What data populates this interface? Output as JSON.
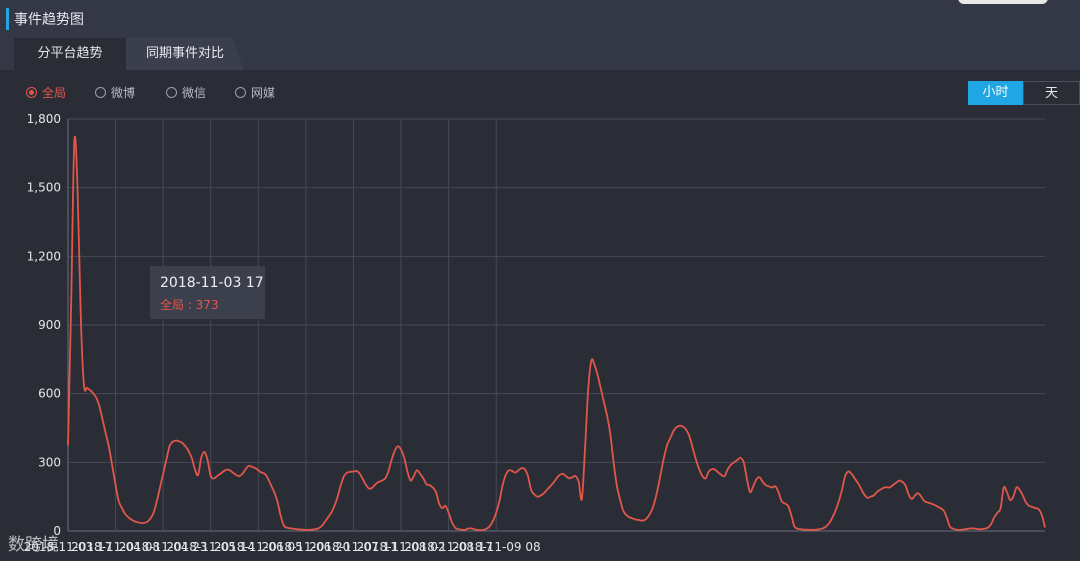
{
  "header": {
    "title": "事件趋势图"
  },
  "tabs": [
    {
      "label": "分平台趋势"
    },
    {
      "label": "同期事件对比"
    }
  ],
  "filters": [
    {
      "label": "全局",
      "selected": true
    },
    {
      "label": "微博",
      "selected": false
    },
    {
      "label": "微信",
      "selected": false
    },
    {
      "label": "网媒",
      "selected": false
    }
  ],
  "unit_toggle": {
    "hour": "小时",
    "day": "天",
    "selected": "hour"
  },
  "tooltip": {
    "time": "2018-11-03 17",
    "label": "全局 : 373"
  },
  "watermark": "数跨境",
  "colors": {
    "line": "#e0574a",
    "accent": "#27a4e0",
    "selected_button": "#1fa6e3"
  },
  "chart_data": {
    "type": "line",
    "ylim": [
      0,
      1800
    ],
    "yticks": [
      "0",
      "300",
      "600",
      "900",
      "1,200",
      "1,500",
      "1,800"
    ],
    "yticks_values": [
      0,
      300,
      600,
      900,
      1200,
      1500,
      1800
    ],
    "xticks": [
      "2018-11-03 17",
      "2018-11-04 08",
      "2018-11-04 23",
      "2018-11-05 14",
      "2018-11-06 05",
      "2018-11-06 20",
      "2018-11-07 11",
      "2018-11-08 02",
      "2018-11-08 17",
      "2018-11-09 08"
    ],
    "x_hours_per_tick": 15,
    "grid": true,
    "series": [
      {
        "values": [
          373,
          1000,
          1700,
          1500,
          950,
          640,
          625,
          615,
          600,
          580,
          540,
          480,
          420,
          360,
          280,
          200,
          130,
          100,
          75,
          60,
          50,
          42,
          38,
          35,
          35,
          40,
          55,
          80,
          130,
          190,
          250,
          310,
          370,
          390,
          395,
          392,
          385,
          370,
          350,
          320,
          270,
          245,
          320,
          345,
          310,
          240,
          230,
          240,
          250,
          260,
          268,
          265,
          255,
          245,
          240,
          250,
          270,
          285,
          280,
          275,
          265,
          255,
          250,
          230,
          200,
          170,
          130,
          70,
          25,
          15,
          12,
          10,
          8,
          7,
          6,
          5,
          5,
          6,
          8,
          12,
          22,
          40,
          60,
          80,
          110,
          150,
          200,
          240,
          255,
          258,
          260,
          262,
          250,
          225,
          200,
          185,
          190,
          205,
          215,
          220,
          230,
          260,
          310,
          350,
          370,
          355,
          320,
          260,
          220,
          240,
          265,
          250,
          230,
          205,
          200,
          190,
          170,
          120,
          100,
          110,
          80,
          40,
          15,
          8,
          6,
          5,
          10,
          12,
          8,
          5,
          4,
          5,
          10,
          22,
          45,
          80,
          130,
          200,
          245,
          265,
          262,
          255,
          265,
          275,
          270,
          240,
          180,
          160,
          150,
          155,
          165,
          180,
          195,
          210,
          230,
          245,
          250,
          240,
          230,
          235,
          240,
          215,
          140,
          360,
          620,
          745,
          725,
          680,
          620,
          560,
          500,
          420,
          300,
          200,
          140,
          90,
          70,
          60,
          55,
          50,
          48,
          45,
          50,
          65,
          90,
          130,
          190,
          260,
          330,
          380,
          410,
          440,
          455,
          460,
          455,
          440,
          410,
          360,
          310,
          270,
          240,
          230,
          260,
          270,
          268,
          255,
          245,
          240,
          270,
          290,
          300,
          310,
          320,
          300,
          230,
          170,
          195,
          225,
          235,
          215,
          200,
          195,
          190,
          195,
          170,
          130,
          120,
          110,
          70,
          20,
          10,
          8,
          6,
          6,
          5,
          5,
          6,
          8,
          12,
          20,
          35,
          60,
          90,
          130,
          180,
          240,
          260,
          250,
          230,
          210,
          185,
          160,
          145,
          150,
          155,
          170,
          180,
          188,
          192,
          190,
          200,
          210,
          220,
          215,
          200,
          160,
          140,
          155,
          165,
          150,
          130,
          125,
          120,
          115,
          108,
          100,
          90,
          60,
          20,
          10,
          6,
          5,
          6,
          8,
          10,
          12,
          10,
          8,
          8,
          10,
          15,
          30,
          60,
          80,
          100,
          190,
          170,
          135,
          150,
          190,
          180,
          155,
          125,
          110,
          105,
          100,
          95,
          70,
          15
        ]
      }
    ]
  }
}
